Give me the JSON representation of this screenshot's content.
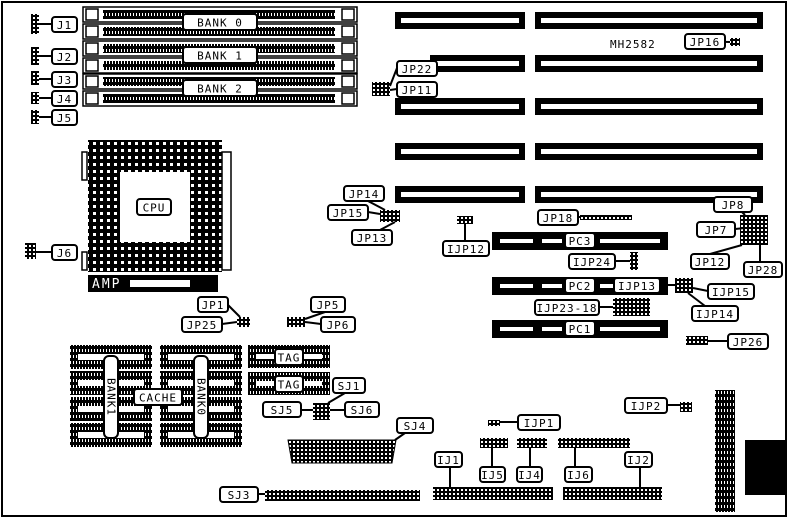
{
  "model": "MH2582",
  "colors": {
    "ink": "#000000",
    "paper": "#ffffff"
  },
  "labels": {
    "bank0": "BANK 0",
    "bank1": "BANK 1",
    "bank2": "BANK 2",
    "j1": "J1",
    "j2": "J2",
    "j3": "J3",
    "j4": "J4",
    "j5": "J5",
    "j6": "J6",
    "cpu": "CPU",
    "amp": "AMP",
    "jp22": "JP22",
    "jp11": "JP11",
    "jp16": "JP16",
    "jp14": "JP14",
    "jp15": "JP15",
    "jp13": "JP13",
    "ijp12": "IJP12",
    "jp18": "JP18",
    "jp8": "JP8",
    "jp7": "JP7",
    "jp12": "JP12",
    "jp28": "JP28",
    "pc3": "PC3",
    "pc2": "PC2",
    "pc1": "PC1",
    "ijp24": "IJP24",
    "ijp13": "IJP13",
    "ijp15": "IJP15",
    "ijp14": "IJP14",
    "ijp23_18": "IJP23-18",
    "jp26": "JP26",
    "jp1": "JP1",
    "jp25": "JP25",
    "jp5": "JP5",
    "jp6": "JP6",
    "tag1": "TAG",
    "tag2": "TAG",
    "cache": "CACHE",
    "cache_bank1": "BANK1",
    "cache_bank0": "BANK0",
    "sj1": "SJ1",
    "sj5": "SJ5",
    "sj6": "SJ6",
    "sj4": "SJ4",
    "sj3": "SJ3",
    "ijp1": "IJP1",
    "ijp2": "IJP2",
    "ij1": "IJ1",
    "ij5": "IJ5",
    "ij4": "IJ4",
    "ij6": "IJ6",
    "ij2": "IJ2"
  }
}
